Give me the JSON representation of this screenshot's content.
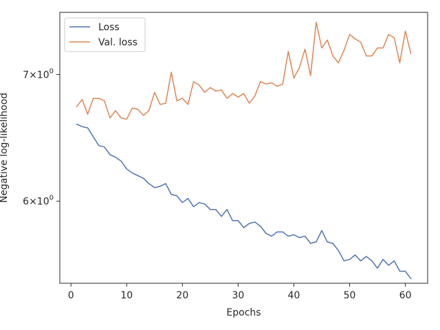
{
  "chart_data": {
    "type": "line",
    "title": "",
    "xlabel": "Epochs",
    "ylabel": "Negative log-likelihood",
    "xlim": [
      -2,
      64
    ],
    "ylim": [
      5.43,
      7.55
    ],
    "yscale": "log",
    "grid": false,
    "legend_position": "upper-left",
    "x_ticks": [
      0,
      10,
      20,
      30,
      40,
      50,
      60
    ],
    "x_tick_labels": [
      "0",
      "10",
      "20",
      "30",
      "40",
      "50",
      "60"
    ],
    "y_ticks": [
      6,
      7
    ],
    "y_tick_labels": [
      {
        "base": "6",
        "times": "×",
        "ten": "10",
        "exp": "0"
      },
      {
        "base": "7",
        "times": "×",
        "ten": "10",
        "exp": "0"
      }
    ],
    "x": [
      1,
      2,
      3,
      4,
      5,
      6,
      7,
      8,
      9,
      10,
      11,
      12,
      13,
      14,
      15,
      16,
      17,
      18,
      19,
      20,
      21,
      22,
      23,
      24,
      25,
      26,
      27,
      28,
      29,
      30,
      31,
      32,
      33,
      34,
      35,
      36,
      37,
      38,
      39,
      40,
      41,
      42,
      43,
      44,
      45,
      46,
      47,
      48,
      49,
      50,
      51,
      52,
      53,
      54,
      55,
      56,
      57,
      58,
      59,
      60,
      61
    ],
    "series": [
      {
        "name": "Loss",
        "color": "#4c72b0",
        "values": [
          6.59,
          6.57,
          6.56,
          6.49,
          6.42,
          6.41,
          6.35,
          6.33,
          6.3,
          6.24,
          6.21,
          6.19,
          6.17,
          6.13,
          6.1,
          6.11,
          6.13,
          6.05,
          6.04,
          5.99,
          6.02,
          5.96,
          5.99,
          5.98,
          5.94,
          5.94,
          5.89,
          5.94,
          5.86,
          5.86,
          5.81,
          5.84,
          5.85,
          5.82,
          5.77,
          5.75,
          5.78,
          5.78,
          5.75,
          5.76,
          5.74,
          5.75,
          5.7,
          5.71,
          5.79,
          5.71,
          5.7,
          5.65,
          5.58,
          5.59,
          5.62,
          5.58,
          5.61,
          5.58,
          5.53,
          5.59,
          5.55,
          5.58,
          5.51,
          5.51,
          5.46
        ]
      },
      {
        "name": "Val. loss",
        "color": "#dd8452",
        "values": [
          6.73,
          6.79,
          6.67,
          6.8,
          6.8,
          6.78,
          6.64,
          6.7,
          6.64,
          6.63,
          6.72,
          6.71,
          6.66,
          6.7,
          6.85,
          6.75,
          6.76,
          7.02,
          6.78,
          6.8,
          6.75,
          6.94,
          6.91,
          6.85,
          6.89,
          6.86,
          6.87,
          6.8,
          6.84,
          6.81,
          6.84,
          6.76,
          6.82,
          6.94,
          6.92,
          6.93,
          6.9,
          6.92,
          7.2,
          6.97,
          7.06,
          7.22,
          6.99,
          7.46,
          7.23,
          7.3,
          7.16,
          7.1,
          7.21,
          7.35,
          7.31,
          7.28,
          7.16,
          7.16,
          7.23,
          7.23,
          7.35,
          7.32,
          7.1,
          7.38,
          7.18
        ]
      }
    ]
  }
}
